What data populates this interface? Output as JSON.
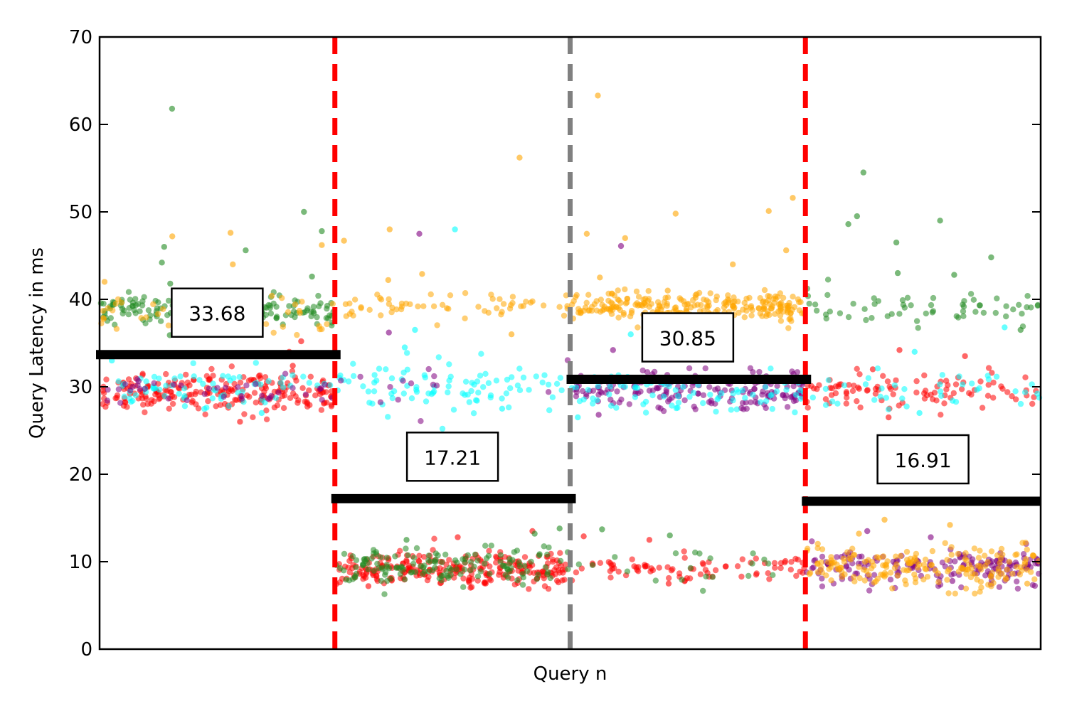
{
  "chart_data": {
    "type": "scatter",
    "title": "",
    "xlabel": "Query n",
    "ylabel": "Query Latency in ms",
    "ylim": [
      0,
      70
    ],
    "yticks": [
      0,
      10,
      20,
      30,
      40,
      50,
      60,
      70
    ],
    "xlim": [
      0,
      4
    ],
    "show_xticks": false,
    "grid": false,
    "legend": "none",
    "phase_boundaries": [
      {
        "x": 1,
        "color": "#ff0000",
        "style": "dashed"
      },
      {
        "x": 2,
        "color": "#808080",
        "style": "dashed"
      },
      {
        "x": 3,
        "color": "#ff0000",
        "style": "dashed"
      }
    ],
    "phases": [
      {
        "x_range": [
          0,
          1
        ],
        "mean": 33.68,
        "label": "33.68",
        "clusters": [
          {
            "color": "#228b22",
            "center": 38.8,
            "spread": 1.0,
            "count": 170,
            "outliers": [
              61.8,
              50.0,
              47.8,
              46.0,
              45.6,
              44.2,
              42.6,
              41.8,
              35.9
            ]
          },
          {
            "color": "#ffa500",
            "center": 38.5,
            "spread": 1.6,
            "count": 60,
            "outliers": [
              47.6,
              47.2,
              46.2,
              44.0,
              42.0
            ]
          },
          {
            "color": "#ff0000",
            "center": 29.4,
            "spread": 1.5,
            "count": 220,
            "outliers": [
              35.2,
              34.0,
              32.4,
              26.0
            ]
          },
          {
            "color": "#00ffff",
            "center": 29.8,
            "spread": 1.4,
            "count": 70,
            "outliers": [
              33.0,
              27.0
            ]
          },
          {
            "color": "#800080",
            "center": 29.6,
            "spread": 1.0,
            "count": 40,
            "outliers": []
          }
        ]
      },
      {
        "x_range": [
          1,
          2
        ],
        "mean": 17.21,
        "label": "17.21",
        "clusters": [
          {
            "color": "#ffa500",
            "center": 39.2,
            "spread": 1.0,
            "count": 60,
            "outliers": [
              56.2,
              48.0,
              46.7,
              42.9,
              42.2,
              36.0
            ]
          },
          {
            "color": "#00ffff",
            "center": 30.0,
            "spread": 1.6,
            "count": 90,
            "outliers": [
              48.0,
              36.5,
              34.5,
              27.5
            ]
          },
          {
            "color": "#800080",
            "center": 29.5,
            "spread": 2.0,
            "count": 14,
            "outliers": [
              47.5,
              36.2
            ]
          },
          {
            "color": "#ff0000",
            "center": 9.2,
            "spread": 1.1,
            "count": 260,
            "outliers": [
              13.5,
              12.8,
              7.2
            ]
          },
          {
            "color": "#228b22",
            "center": 9.5,
            "spread": 1.3,
            "count": 150,
            "outliers": [
              13.8,
              13.2,
              12.5
            ]
          }
        ]
      },
      {
        "x_range": [
          2,
          3
        ],
        "mean": 30.85,
        "label": "30.85",
        "clusters": [
          {
            "color": "#ffa500",
            "center": 39.0,
            "spread": 1.0,
            "count": 260,
            "outliers": [
              63.3,
              51.6,
              50.1,
              49.8,
              47.5,
              47.0,
              45.6,
              44.0,
              42.5,
              41.0
            ]
          },
          {
            "color": "#800080",
            "center": 29.8,
            "spread": 1.3,
            "count": 180,
            "outliers": [
              46.1,
              36.5,
              34.2,
              26.8
            ]
          },
          {
            "color": "#00ffff",
            "center": 29.5,
            "spread": 1.5,
            "count": 80,
            "outliers": [
              36.0,
              26.5
            ]
          },
          {
            "color": "#ff0000",
            "center": 9.3,
            "spread": 0.9,
            "count": 80,
            "outliers": [
              12.9,
              12.5,
              7.5
            ]
          },
          {
            "color": "#228b22",
            "center": 9.5,
            "spread": 1.2,
            "count": 20,
            "outliers": [
              13.7,
              13.0
            ]
          }
        ]
      },
      {
        "x_range": [
          3,
          4
        ],
        "mean": 16.91,
        "label": "16.91",
        "clusters": [
          {
            "color": "#228b22",
            "center": 38.8,
            "spread": 1.3,
            "count": 60,
            "outliers": [
              54.5,
              49.5,
              49.0,
              48.6,
              46.5,
              44.8,
              43.0,
              42.8,
              36.5
            ]
          },
          {
            "color": "#ff0000",
            "center": 29.5,
            "spread": 1.6,
            "count": 95,
            "outliers": [
              34.2,
              33.5,
              32.0,
              26.5
            ]
          },
          {
            "color": "#00ffff",
            "center": 29.6,
            "spread": 1.3,
            "count": 40,
            "outliers": [
              36.8,
              34.0,
              27.0
            ]
          },
          {
            "color": "#800080",
            "center": 9.4,
            "spread": 1.2,
            "count": 170,
            "outliers": [
              13.5,
              12.8,
              7.8
            ]
          },
          {
            "color": "#ffa500",
            "center": 9.4,
            "spread": 1.4,
            "count": 190,
            "outliers": [
              14.8,
              14.2,
              13.2,
              7.5
            ]
          }
        ]
      }
    ]
  }
}
